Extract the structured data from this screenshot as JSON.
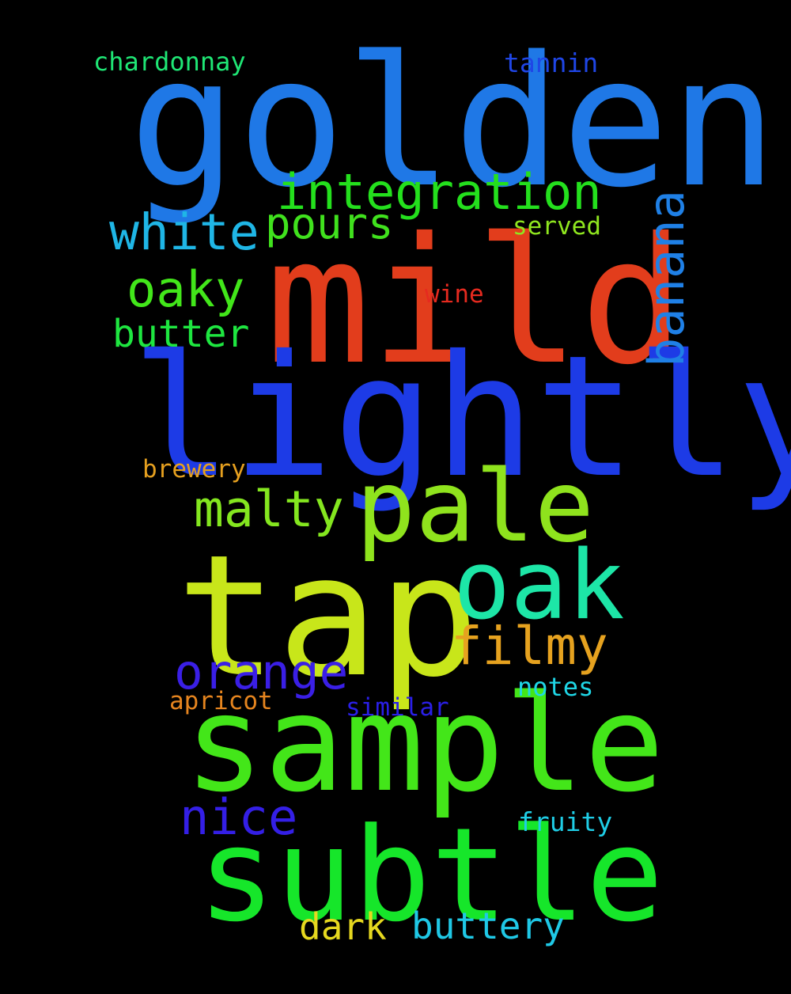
{
  "words": [
    {
      "key": "golden",
      "text": "golden",
      "color": "#1f78e6"
    },
    {
      "key": "mild",
      "text": "mild",
      "color": "#e23d1c"
    },
    {
      "key": "lightly",
      "text": "lightly",
      "color": "#1d3be6"
    },
    {
      "key": "tap",
      "text": "tap",
      "color": "#c8e61a"
    },
    {
      "key": "sample",
      "text": "sample",
      "color": "#43e619"
    },
    {
      "key": "subtle",
      "text": "subtle",
      "color": "#16e62a"
    },
    {
      "key": "pale",
      "text": "pale",
      "color": "#8fe31d"
    },
    {
      "key": "oak",
      "text": "oak",
      "color": "#1de6a7"
    },
    {
      "key": "integration",
      "text": "integration",
      "color": "#24e01d"
    },
    {
      "key": "white",
      "text": "white",
      "color": "#1fb6e6"
    },
    {
      "key": "pours",
      "text": "pours",
      "color": "#40e11d"
    },
    {
      "key": "banana",
      "text": "banana",
      "color": "#1f80e6"
    },
    {
      "key": "oaky",
      "text": "oaky",
      "color": "#42e61a"
    },
    {
      "key": "butter",
      "text": "butter",
      "color": "#1ee640"
    },
    {
      "key": "malty",
      "text": "malty",
      "color": "#84e61f"
    },
    {
      "key": "filmy",
      "text": "filmy",
      "color": "#e6a21f"
    },
    {
      "key": "orange",
      "text": "orange",
      "color": "#3a1fe6"
    },
    {
      "key": "nice",
      "text": "nice",
      "color": "#341fe6"
    },
    {
      "key": "dark",
      "text": "dark",
      "color": "#e6d81f"
    },
    {
      "key": "buttery",
      "text": "buttery",
      "color": "#1fc8e6"
    },
    {
      "key": "chardonnay",
      "text": "chardonnay",
      "color": "#1fe675"
    },
    {
      "key": "tannin",
      "text": "tannin",
      "color": "#1f46e6"
    },
    {
      "key": "served",
      "text": "served",
      "color": "#8fe61f"
    },
    {
      "key": "wine",
      "text": "wine",
      "color": "#e62a1f"
    },
    {
      "key": "brewery",
      "text": "brewery",
      "color": "#e6a01f"
    },
    {
      "key": "apricot",
      "text": "apricot",
      "color": "#e6851f"
    },
    {
      "key": "similar",
      "text": "similar",
      "color": "#2a1fe6"
    },
    {
      "key": "notes",
      "text": "notes",
      "color": "#1fd6e6"
    },
    {
      "key": "fruity",
      "text": "fruity",
      "color": "#1fcde6"
    }
  ]
}
